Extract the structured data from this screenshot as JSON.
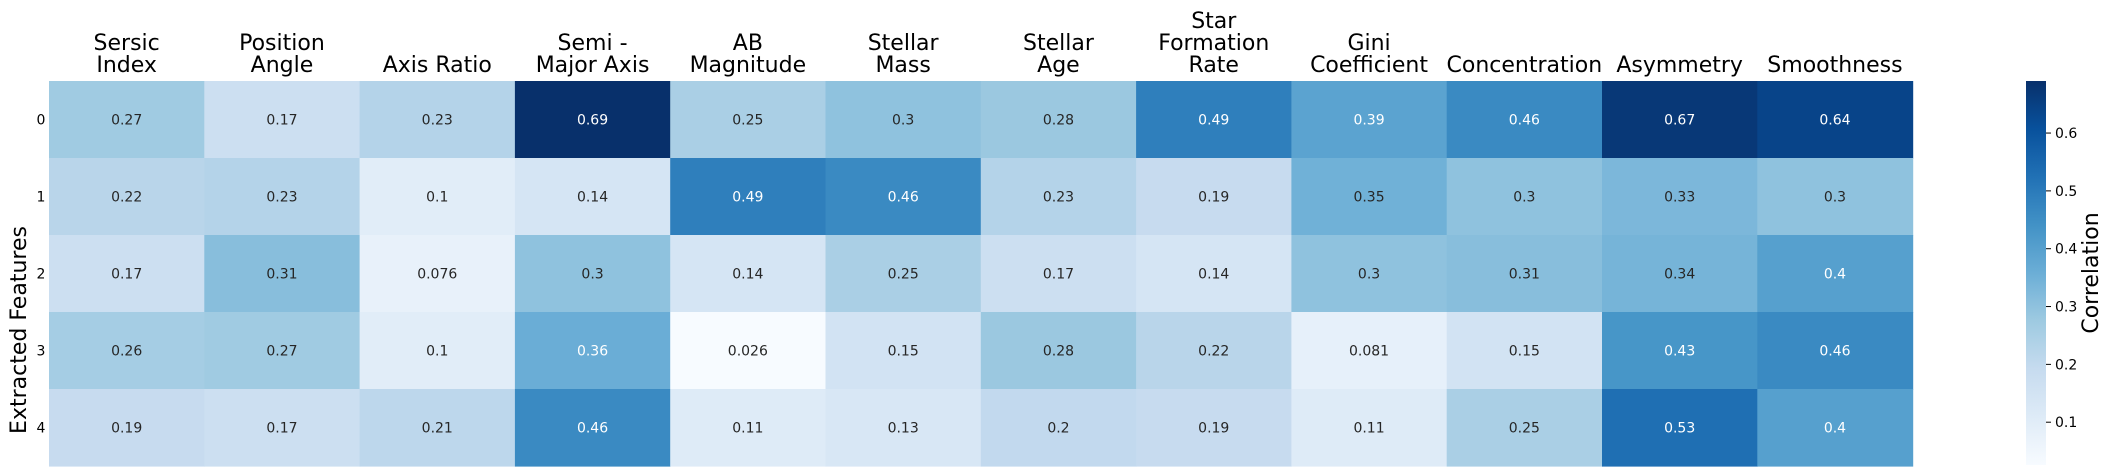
{
  "chart_data": {
    "type": "heatmap",
    "title": "",
    "columns": [
      [
        "Sersic",
        "Index"
      ],
      [
        "Position",
        "Angle"
      ],
      [
        "Axis Ratio"
      ],
      [
        "Semi -",
        "Major Axis"
      ],
      [
        "AB",
        "Magnitude"
      ],
      [
        "Stellar",
        "Mass"
      ],
      [
        "Stellar",
        "Age"
      ],
      [
        "Star",
        "Formation",
        "Rate"
      ],
      [
        "Gini",
        "Coefficient"
      ],
      [
        "Concentration"
      ],
      [
        "Asymmetry"
      ],
      [
        "Smoothness"
      ]
    ],
    "rows": [
      "0",
      "1",
      "2",
      "3",
      "4"
    ],
    "values": [
      [
        0.27,
        0.17,
        0.23,
        0.69,
        0.25,
        0.3,
        0.28,
        0.49,
        0.39,
        0.46,
        0.67,
        0.64
      ],
      [
        0.22,
        0.23,
        0.1,
        0.14,
        0.49,
        0.46,
        0.23,
        0.19,
        0.35,
        0.3,
        0.33,
        0.3
      ],
      [
        0.17,
        0.31,
        0.076,
        0.3,
        0.14,
        0.25,
        0.17,
        0.14,
        0.3,
        0.31,
        0.34,
        0.4
      ],
      [
        0.26,
        0.27,
        0.1,
        0.36,
        0.026,
        0.15,
        0.28,
        0.22,
        0.081,
        0.15,
        0.43,
        0.46
      ],
      [
        0.19,
        0.17,
        0.21,
        0.46,
        0.11,
        0.13,
        0.2,
        0.19,
        0.11,
        0.25,
        0.53,
        0.4
      ]
    ],
    "ylabel": "Extracted Features",
    "colorbar": {
      "label": "Correlation",
      "range": [
        0.026,
        0.69
      ],
      "ticks": [
        0.1,
        0.2,
        0.3,
        0.4,
        0.5,
        0.6
      ]
    },
    "colormap": "Blues",
    "colormap_light": "#f7fbff",
    "colormap_dark": "#08306b",
    "text_color_light": "#ffffff",
    "text_color_dark": "#262626"
  }
}
